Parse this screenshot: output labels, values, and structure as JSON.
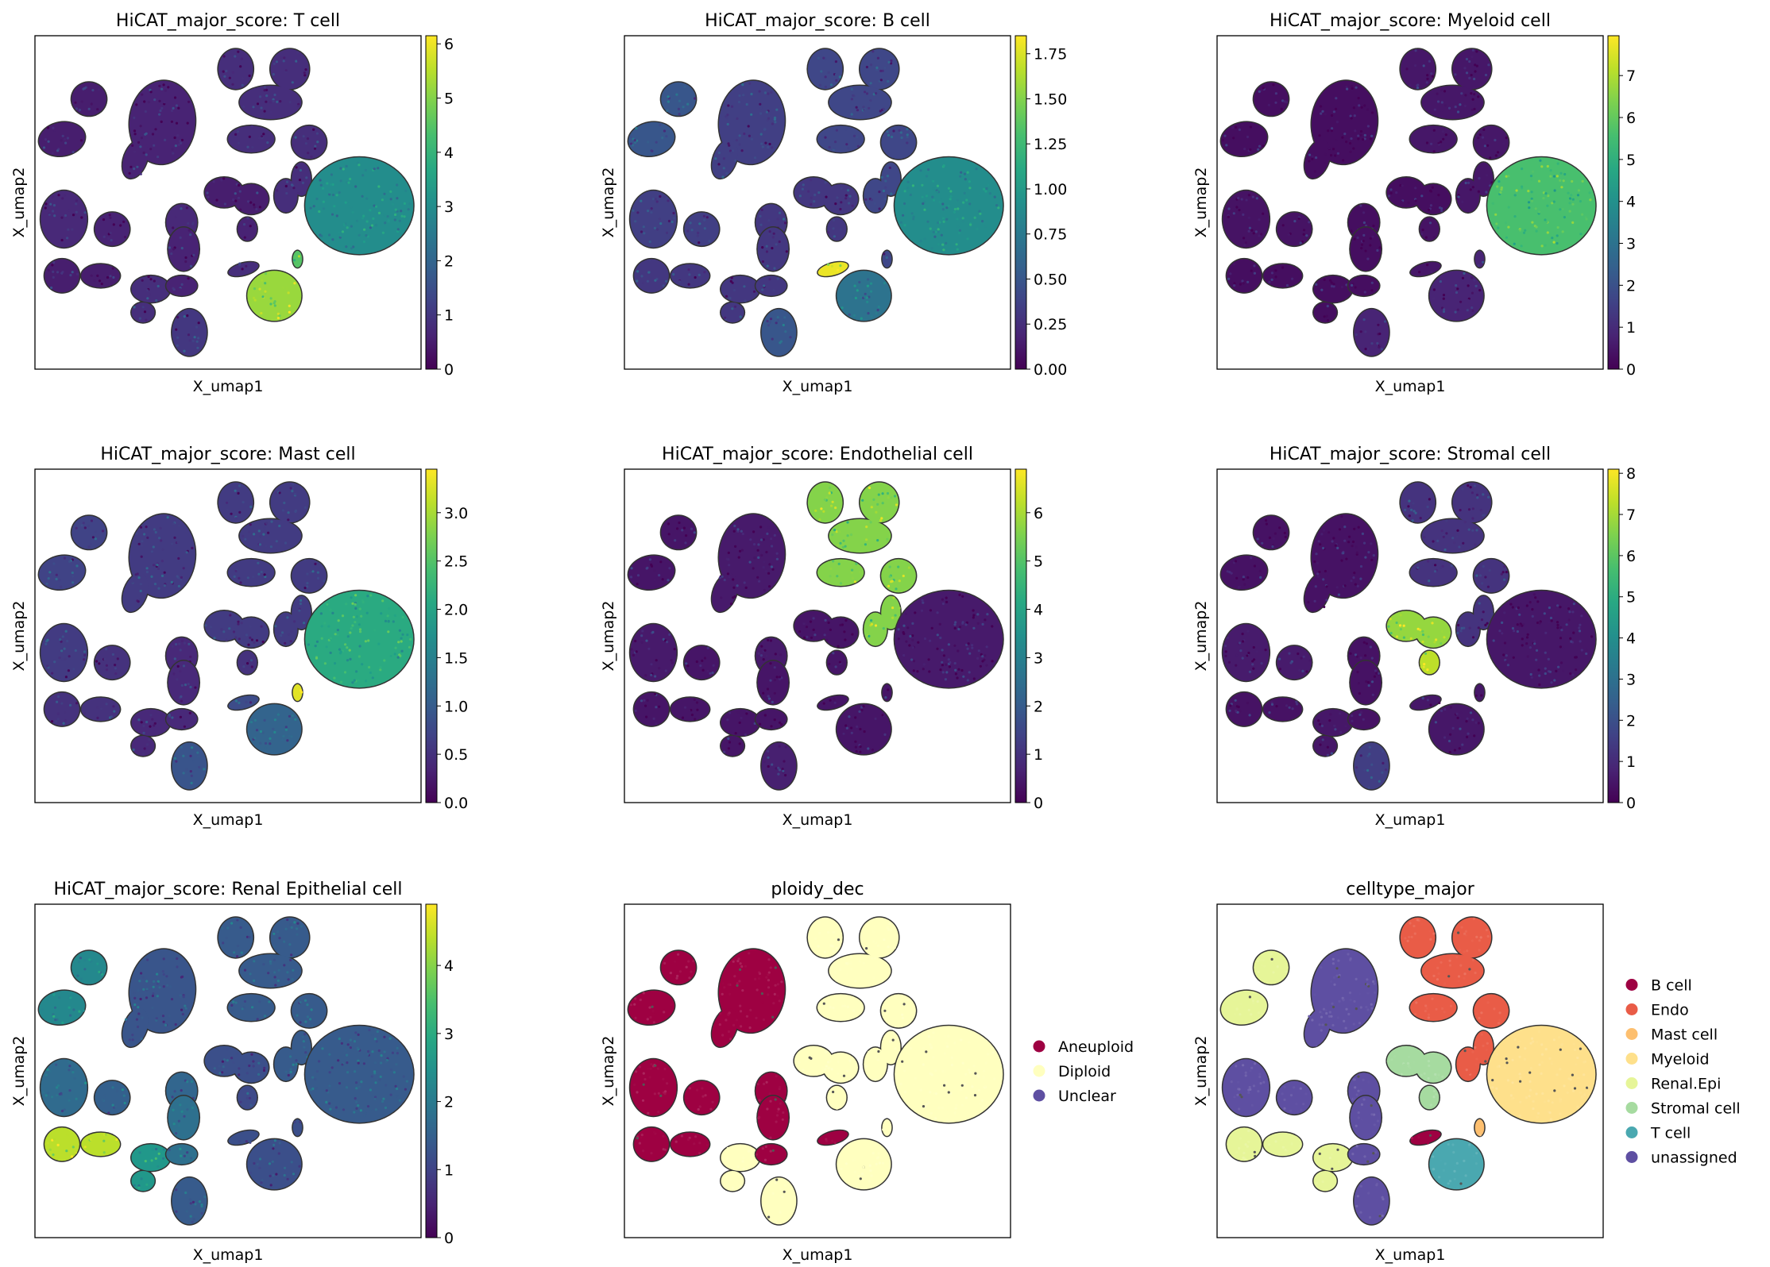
{
  "figure": {
    "panel_count": 9
  },
  "colors": {
    "viridis": [
      "#440154",
      "#482878",
      "#3e4989",
      "#31688e",
      "#26828e",
      "#1f9e89",
      "#35b779",
      "#6ece58",
      "#b5de2b",
      "#fde725"
    ],
    "frame": "#000000",
    "cell_outline": "#333333",
    "background": "#ffffff"
  },
  "chart_data": [
    {
      "type": "scatter",
      "title": "HiCAT_major_score: T cell",
      "xlabel": "X_umap1",
      "ylabel": "X_umap2",
      "legend": "colorbar",
      "colorbar": {
        "min": 0,
        "max": 6.15,
        "ticks": [
          0,
          1,
          2,
          3,
          4,
          5,
          6
        ],
        "tick_labels": [
          "0",
          "1",
          "2",
          "3",
          "4",
          "5",
          "6"
        ]
      },
      "cluster_values": {
        "A": 0.5,
        "B": 0.6,
        "C": 0.8,
        "D": 0.7,
        "E": 0.6,
        "F": 0.5,
        "G": 0.6,
        "H": 0.7,
        "I": 0.5,
        "J": 0.8,
        "K": 0.6,
        "L": 3.0,
        "M": 5.2,
        "N": 1.0,
        "O": 0.8,
        "P": 4.5
      }
    },
    {
      "type": "scatter",
      "title": "HiCAT_major_score: B cell",
      "xlabel": "X_umap1",
      "ylabel": "X_umap2",
      "legend": "colorbar",
      "colorbar": {
        "min": 0,
        "max": 1.85,
        "ticks": [
          0,
          0.25,
          0.5,
          0.75,
          1.0,
          1.25,
          1.5,
          1.75
        ],
        "tick_labels": [
          "0.00",
          "0.25",
          "0.50",
          "0.75",
          "1.00",
          "1.25",
          "1.50",
          "1.75"
        ]
      },
      "cluster_values": {
        "A": 0.5,
        "B": 0.35,
        "C": 0.4,
        "D": 0.35,
        "E": 0.35,
        "F": 0.3,
        "G": 0.3,
        "H": 0.3,
        "I": 0.3,
        "J": 0.3,
        "K": 0.3,
        "L": 0.9,
        "M": 0.7,
        "N": 0.5,
        "O": 1.8,
        "P": 0.4
      }
    },
    {
      "type": "scatter",
      "title": "HiCAT_major_score: Myeloid cell",
      "xlabel": "X_umap1",
      "ylabel": "X_umap2",
      "legend": "colorbar",
      "colorbar": {
        "min": 0,
        "max": 7.95,
        "ticks": [
          0,
          1,
          2,
          3,
          4,
          5,
          6,
          7
        ],
        "tick_labels": [
          "0",
          "1",
          "2",
          "3",
          "4",
          "5",
          "6",
          "7"
        ]
      },
      "cluster_values": {
        "A": 0.3,
        "B": 0.3,
        "C": 0.5,
        "D": 0.4,
        "E": 0.4,
        "F": 0.3,
        "G": 0.4,
        "H": 0.3,
        "I": 0.3,
        "J": 0.3,
        "K": 0.3,
        "L": 5.6,
        "M": 0.8,
        "N": 0.8,
        "O": 0.5,
        "P": 0.8
      }
    },
    {
      "type": "scatter",
      "title": "HiCAT_major_score: Mast cell",
      "xlabel": "X_umap1",
      "ylabel": "X_umap2",
      "legend": "colorbar",
      "colorbar": {
        "min": 0,
        "max": 3.45,
        "ticks": [
          0,
          0.5,
          1.0,
          1.5,
          2.0,
          2.5,
          3.0
        ],
        "tick_labels": [
          "0.0",
          "0.5",
          "1.0",
          "1.5",
          "2.0",
          "2.5",
          "3.0"
        ]
      },
      "cluster_values": {
        "A": 0.7,
        "B": 0.6,
        "C": 0.6,
        "D": 0.6,
        "E": 0.5,
        "F": 0.6,
        "G": 0.5,
        "H": 0.4,
        "I": 0.5,
        "J": 0.4,
        "K": 0.4,
        "L": 2.1,
        "M": 1.1,
        "N": 0.9,
        "O": 0.8,
        "P": 3.3
      }
    },
    {
      "type": "scatter",
      "title": "HiCAT_major_score: Endothelial cell",
      "xlabel": "X_umap1",
      "ylabel": "X_umap2",
      "legend": "colorbar",
      "colorbar": {
        "min": 0,
        "max": 6.9,
        "ticks": [
          0,
          1,
          2,
          3,
          4,
          5,
          6
        ],
        "tick_labels": [
          "0",
          "1",
          "2",
          "3",
          "4",
          "5",
          "6"
        ]
      },
      "cluster_values": {
        "A": 0.4,
        "B": 0.5,
        "C": 5.6,
        "D": 0.5,
        "E": 0.4,
        "F": 0.4,
        "G": 0.4,
        "H": 0.5,
        "I": 0.4,
        "J": 0.4,
        "K": 0.4,
        "L": 0.5,
        "M": 0.4,
        "N": 0.6,
        "O": 0.4,
        "P": 0.4
      }
    },
    {
      "type": "scatter",
      "title": "HiCAT_major_score: Stromal cell",
      "xlabel": "X_umap1",
      "ylabel": "X_umap2",
      "legend": "colorbar",
      "colorbar": {
        "min": 0,
        "max": 8.1,
        "ticks": [
          0,
          1,
          2,
          3,
          4,
          5,
          6,
          7,
          8
        ],
        "tick_labels": [
          "0",
          "1",
          "2",
          "3",
          "4",
          "5",
          "6",
          "7",
          "8"
        ]
      },
      "cluster_values": {
        "A": 0.4,
        "B": 0.4,
        "C": 1.2,
        "D": 0.6,
        "E": 0.6,
        "F": 6.8,
        "G": 7.3,
        "H": 0.4,
        "I": 0.4,
        "J": 0.5,
        "K": 0.4,
        "L": 0.5,
        "M": 0.5,
        "N": 1.5,
        "O": 0.5,
        "P": 0.5
      }
    },
    {
      "type": "scatter",
      "title": "HiCAT_major_score: Renal Epithelial cell",
      "xlabel": "X_umap1",
      "ylabel": "X_umap2",
      "legend": "colorbar",
      "colorbar": {
        "min": 0,
        "max": 4.9,
        "ticks": [
          0,
          1,
          2,
          3,
          4
        ],
        "tick_labels": [
          "0",
          "1",
          "2",
          "3",
          "4"
        ]
      },
      "cluster_values": {
        "A": 2.3,
        "B": 1.3,
        "C": 1.4,
        "D": 1.7,
        "E": 1.5,
        "F": 1.2,
        "G": 1.1,
        "H": 1.6,
        "I": 4.4,
        "J": 2.6,
        "K": 1.8,
        "L": 1.4,
        "M": 1.2,
        "N": 1.4,
        "O": 1.2,
        "P": 1.2
      }
    },
    {
      "type": "scatter",
      "title": "ploidy_dec",
      "xlabel": "X_umap1",
      "ylabel": "X_umap2",
      "legend": "right",
      "categories": [
        {
          "name": "Aneuploid",
          "color": "#9e0142"
        },
        {
          "name": "Diploid",
          "color": "#ffffbf"
        },
        {
          "name": "Unclear",
          "color": "#5e4fa2"
        }
      ],
      "cluster_categories": {
        "A": "Aneuploid",
        "B": "Aneuploid",
        "C": "Diploid",
        "D": "Aneuploid",
        "E": "Aneuploid",
        "F": "Diploid",
        "G": "Diploid",
        "H": "Aneuploid",
        "I": "Aneuploid",
        "J": "Diploid",
        "K": "Aneuploid",
        "L": "Diploid",
        "M": "Diploid",
        "N": "Diploid",
        "O": "Aneuploid",
        "P": "Diploid"
      }
    },
    {
      "type": "scatter",
      "title": "celltype_major",
      "xlabel": "X_umap1",
      "ylabel": "X_umap2",
      "legend": "right",
      "categories": [
        {
          "name": "B cell",
          "color": "#9e0142"
        },
        {
          "name": "Endo",
          "color": "#e95c47"
        },
        {
          "name": "Mast cell",
          "color": "#fdbf6f"
        },
        {
          "name": "Myeloid",
          "color": "#fee08b"
        },
        {
          "name": "Renal.Epi",
          "color": "#e6f598"
        },
        {
          "name": "Stromal cell",
          "color": "#a6dba0"
        },
        {
          "name": "T cell",
          "color": "#4aa8b0"
        },
        {
          "name": "unassigned",
          "color": "#5e4fa2"
        }
      ],
      "cluster_categories": {
        "A": "Renal.Epi",
        "B": "unassigned",
        "C": "Endo",
        "D": "unassigned",
        "E": "unassigned",
        "F": "Stromal cell",
        "G": "Stromal cell",
        "H": "unassigned",
        "I": "Renal.Epi",
        "J": "Renal.Epi",
        "K": "unassigned",
        "L": "Myeloid",
        "M": "T cell",
        "N": "unassigned",
        "O": "B cell",
        "P": "Mast cell"
      }
    }
  ]
}
